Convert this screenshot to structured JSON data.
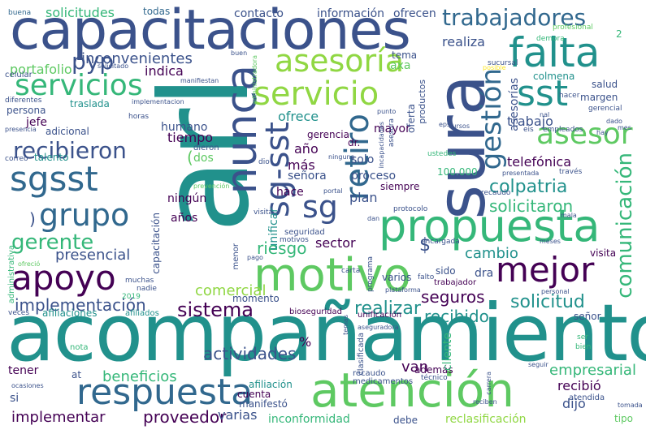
{
  "palette": {
    "background": "#ffffff",
    "dark_purple": "#440154",
    "indigo": "#3b528b",
    "blue": "#31688e",
    "teal": "#21918c",
    "sea_green": "#35b779",
    "green": "#5ec962",
    "lime": "#90d743",
    "yellow": "#fde725"
  },
  "words": [
    {
      "text": "acompañamiento",
      "color": "#21918c"
    },
    {
      "text": "arl",
      "color": "#21918c"
    },
    {
      "text": "capacitaciones",
      "color": "#3b528b"
    },
    {
      "text": "sura",
      "color": "#3b528b"
    },
    {
      "text": "atención",
      "color": "#5ec962"
    },
    {
      "text": "motivo",
      "color": "#5ec962"
    },
    {
      "text": "propuesta",
      "color": "#35b779"
    },
    {
      "text": "falta",
      "color": "#21918c"
    },
    {
      "text": "nunca",
      "color": "#3b528b"
    },
    {
      "text": "respuesta",
      "color": "#31688e"
    },
    {
      "text": "asesoría",
      "color": "#90d743"
    },
    {
      "text": "servicio",
      "color": "#90d743"
    },
    {
      "text": "servicios",
      "color": "#35b779"
    },
    {
      "text": "sgsst",
      "color": "#31688e"
    },
    {
      "text": "sst",
      "color": "#21918c"
    },
    {
      "text": "apoyo",
      "color": "#440154"
    },
    {
      "text": "mejor",
      "color": "#440154"
    },
    {
      "text": "grupo",
      "color": "#31688e"
    },
    {
      "text": "sg-sst",
      "color": "#3b528b"
    },
    {
      "text": "retiro",
      "color": "#31688e"
    },
    {
      "text": "gestión",
      "color": "#31688e"
    },
    {
      "text": "sg",
      "color": "#3b528b"
    },
    {
      "text": "asesor",
      "color": "#5ec962"
    },
    {
      "text": "trabajadores",
      "color": "#31688e"
    },
    {
      "text": "comunicación",
      "color": "#35b779"
    },
    {
      "text": "recibieron",
      "color": "#3b528b"
    },
    {
      "text": "pyp",
      "color": "#3b528b"
    },
    {
      "text": "gerente",
      "color": "#35b779"
    },
    {
      "text": "sistema",
      "color": "#440154"
    },
    {
      "text": "implementación",
      "color": "#3b528b"
    },
    {
      "text": "inconvenientes",
      "color": "#3b528b"
    },
    {
      "text": "portafolio",
      "color": "#5ec962"
    },
    {
      "text": "colpatria",
      "color": "#21918c"
    },
    {
      "text": "solicitud",
      "color": "#21918c"
    },
    {
      "text": "solicitaron",
      "color": "#35b779"
    },
    {
      "text": "implementar",
      "color": "#440154"
    },
    {
      "text": "proveedor",
      "color": "#440154"
    },
    {
      "text": "actividades",
      "color": "#3b528b"
    },
    {
      "text": "beneficios",
      "color": "#35b779"
    },
    {
      "text": "empresarial",
      "color": "#35b779"
    },
    {
      "text": "realizar",
      "color": "#21918c"
    },
    {
      "text": "recibido",
      "color": "#21918c"
    },
    {
      "text": "comercial",
      "color": "#90d743"
    },
    {
      "text": "presencial",
      "color": "#3b528b"
    },
    {
      "text": "riesgo",
      "color": "#35b779"
    },
    {
      "text": "seguros",
      "color": "#440154"
    },
    {
      "text": "cambio",
      "color": "#21918c"
    },
    {
      "text": "solicitudes",
      "color": "#35b779"
    },
    {
      "text": "contacto",
      "color": "#3b528b"
    },
    {
      "text": "información",
      "color": "#3b528b"
    },
    {
      "text": "ofrecen",
      "color": "#3b528b"
    },
    {
      "text": "todas",
      "color": "#31688e"
    },
    {
      "text": "buena",
      "color": "#31688e"
    },
    {
      "text": "realiza",
      "color": "#3b528b"
    },
    {
      "text": "indica",
      "color": "#440154"
    },
    {
      "text": "ofrece",
      "color": "#21918c"
    },
    {
      "text": "tiempo",
      "color": "#440154"
    },
    {
      "text": "humano",
      "color": "#3b528b"
    },
    {
      "text": "más",
      "color": "#440154"
    },
    {
      "text": "año",
      "color": "#440154"
    },
    {
      "text": "señora",
      "color": "#3b528b"
    },
    {
      "text": "hace",
      "color": "#440154"
    },
    {
      "text": "años",
      "color": "#440154"
    },
    {
      "text": "ningún",
      "color": "#440154"
    },
    {
      "text": "plan",
      "color": "#3b528b"
    },
    {
      "text": "proceso",
      "color": "#3b528b"
    },
    {
      "text": "solo",
      "color": "#3b528b"
    },
    {
      "text": "mayor",
      "color": "#440154"
    },
    {
      "text": "gerencia",
      "color": "#440154"
    },
    {
      "text": "telefónica",
      "color": "#440154"
    },
    {
      "text": "trabajo",
      "color": "#3b528b"
    },
    {
      "text": "asesorías",
      "color": "#3b528b"
    },
    {
      "text": "salud",
      "color": "#3b528b"
    },
    {
      "text": "margen",
      "color": "#3b528b"
    },
    {
      "text": "colmena",
      "color": "#21918c"
    },
    {
      "text": "axa",
      "color": "#5ec962"
    },
    {
      "text": "tema",
      "color": "#3b528b"
    },
    {
      "text": "jefe",
      "color": "#440154"
    },
    {
      "text": "persona",
      "color": "#3b528b"
    },
    {
      "text": "traslada",
      "color": "#21918c"
    },
    {
      "text": "adicional",
      "color": "#3b528b"
    },
    {
      "text": "talento",
      "color": "#21918c"
    },
    {
      "text": "visita",
      "color": "#440154"
    },
    {
      "text": "dra",
      "color": "#3b528b"
    },
    {
      "text": "sido",
      "color": "#3b528b"
    },
    {
      "text": "dijo",
      "color": "#3b528b"
    },
    {
      "text": "recibió",
      "color": "#440154"
    },
    {
      "text": "señor",
      "color": "#3b528b"
    },
    {
      "text": "van",
      "color": "#440154"
    },
    {
      "text": "además",
      "color": "#440154"
    },
    {
      "text": "cuenta",
      "color": "#440154"
    },
    {
      "text": "momento",
      "color": "#3b528b"
    },
    {
      "text": "varias",
      "color": "#3b528b"
    },
    {
      "text": "inconformidad",
      "color": "#35b779"
    },
    {
      "text": "debe",
      "color": "#3b528b"
    },
    {
      "text": "reclasificación",
      "color": "#90d743"
    },
    {
      "text": "tener",
      "color": "#440154"
    },
    {
      "text": "si",
      "color": "#3b528b"
    },
    {
      "text": "at",
      "color": "#3b528b"
    },
    {
      "text": "varios",
      "color": "#3b528b"
    },
    {
      "text": "trabajador",
      "color": "#440154"
    },
    {
      "text": "manifestó",
      "color": "#3b528b"
    },
    {
      "text": "afiliación",
      "color": "#21918c"
    },
    {
      "text": "recaudo",
      "color": "#3b528b"
    },
    {
      "text": "medicamentos",
      "color": "#3b528b"
    },
    {
      "text": "atendida",
      "color": "#3b528b"
    },
    {
      "text": "tipo",
      "color": "#5ec962"
    },
    {
      "text": "seguridad",
      "color": "#3b528b"
    },
    {
      "text": "afiliaciones",
      "color": "#21918c"
    },
    {
      "text": "afiliados",
      "color": "#21918c"
    },
    {
      "text": "bioseguridad",
      "color": "#440154"
    },
    {
      "text": "unificación",
      "color": "#440154"
    },
    {
      "text": "capacitación",
      "color": "#3b528b"
    },
    {
      "text": "menor",
      "color": "#3b528b"
    },
    {
      "text": "sector",
      "color": "#440154"
    },
    {
      "text": "unificar",
      "color": "#21918c"
    },
    {
      "text": "celular",
      "color": "#3b528b"
    },
    {
      "text": "hacer",
      "color": "#3b528b"
    },
    {
      "text": "gerencial",
      "color": "#3b528b"
    },
    {
      "text": "eis",
      "color": "#3b528b"
    },
    {
      "text": "100.000",
      "color": "#35b779"
    },
    {
      "text": "siempre",
      "color": "#440154"
    },
    {
      "text": "dos",
      "color": "#5ec962"
    },
    {
      "text": "dr.",
      "color": "#440154"
    },
    {
      "text": "clasificada",
      "color": "#3b528b"
    },
    {
      "text": "cliente",
      "color": "#35b779"
    },
    {
      "text": "nota",
      "color": "#35b779"
    },
    {
      "text": "ser",
      "color": "#35b779"
    },
    {
      "text": "bien",
      "color": "#35b779"
    },
    {
      "text": "oferta",
      "color": "#3b528b"
    },
    {
      "text": "productos",
      "color": "#3b528b"
    },
    {
      "text": "carta",
      "color": "#3b528b"
    },
    {
      "text": "técnico",
      "color": "#3b528b"
    },
    {
      "text": "recaudo",
      "color": "#3b528b"
    },
    {
      "text": "visita",
      "color": "#3b528b"
    },
    {
      "text": "profesional",
      "color": "#5ec962"
    },
    {
      "text": "demora",
      "color": "#35b779"
    },
    {
      "text": "sucursal",
      "color": "#3b528b"
    },
    {
      "text": "2",
      "color": "#35b779"
    },
    {
      "text": "2019",
      "color": "#35b779"
    },
    {
      "text": "nadie",
      "color": "#3b528b"
    },
    {
      "text": "muchas",
      "color": "#3b528b"
    },
    {
      "text": "encargada",
      "color": "#3b528b"
    },
    {
      "text": "protocolo",
      "color": "#3b528b"
    },
    {
      "text": "motivos",
      "color": "#3b528b"
    },
    {
      "text": "horas",
      "color": "#3b528b"
    },
    {
      "text": "dieron",
      "color": "#3b528b"
    },
    {
      "text": "dio",
      "color": "#3b528b"
    },
    {
      "text": "ninguna",
      "color": "#3b528b"
    },
    {
      "text": "ustedes",
      "color": "#35b779"
    },
    {
      "text": "empleados",
      "color": "#3b528b"
    },
    {
      "text": "cursos",
      "color": "#3b528b"
    },
    {
      "text": "eps",
      "color": "#3b528b"
    },
    {
      "text": "presencia",
      "color": "#3b528b"
    },
    {
      "text": "correo",
      "color": "#3b528b"
    },
    {
      "text": "diferentes",
      "color": "#3b528b"
    },
    {
      "text": "solicitado",
      "color": "#3b528b"
    },
    {
      "text": "manifiestan",
      "color": "#3b528b"
    },
    {
      "text": "administrativa",
      "color": "#35b779"
    },
    {
      "text": "ocasiones",
      "color": "#3b528b"
    },
    {
      "text": "veces",
      "color": "#3b528b"
    },
    {
      "text": "prevención",
      "color": "#5ec962"
    },
    {
      "text": "portal",
      "color": "#3b528b"
    },
    {
      "text": "plataforma",
      "color": "#3b528b"
    },
    {
      "text": "falto",
      "color": "#3b528b"
    },
    {
      "text": "pago",
      "color": "#3b528b"
    },
    {
      "text": "meses",
      "color": "#3b528b"
    },
    {
      "text": "personal",
      "color": "#3b528b"
    },
    {
      "text": "carrera",
      "color": "#3b528b"
    },
    {
      "text": "tomada",
      "color": "#3b528b"
    },
    {
      "text": "reciben",
      "color": "#3b528b"
    },
    {
      "text": "mala",
      "color": "#3b528b"
    },
    {
      "text": "presentada",
      "color": "#3b528b"
    },
    {
      "text": "través",
      "color": "#3b528b"
    },
    {
      "text": "$",
      "color": "#3b528b"
    },
    {
      "text": "%",
      "color": "#440154"
    },
    {
      "text": "(",
      "color": "#5ec962"
    },
    {
      "text": ")",
      "color": "#3b528b"
    },
    {
      "text": "buen",
      "color": "#3b528b"
    },
    {
      "text": "posible",
      "color": "#fde725"
    },
    {
      "text": "implementacion",
      "color": "#3b528b"
    },
    {
      "text": "nal",
      "color": "#3b528b"
    },
    {
      "text": "dado",
      "color": "#3b528b"
    },
    {
      "text": "mes",
      "color": "#3b528b"
    },
    {
      "text": "hay",
      "color": "#3b528b"
    },
    {
      "text": "punto",
      "color": "#3b528b"
    },
    {
      "text": "asesora",
      "color": "#3b528b"
    },
    {
      "text": "incapacidades",
      "color": "#3b528b"
    },
    {
      "text": "administradora",
      "color": "#5ec962"
    },
    {
      "text": "programa",
      "color": "#3b528b"
    },
    {
      "text": "aseguradora",
      "color": "#3b528b"
    },
    {
      "text": "temas",
      "color": "#3b528b"
    },
    {
      "text": "seguir",
      "color": "#3b528b"
    },
    {
      "text": "ofreció",
      "color": "#5ec962"
    },
    {
      "text": "dan",
      "color": "#3b528b"
    }
  ]
}
